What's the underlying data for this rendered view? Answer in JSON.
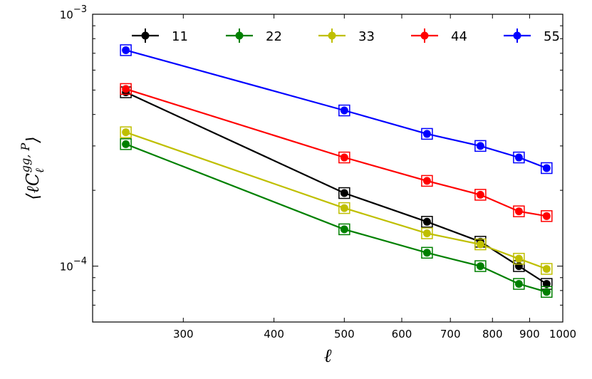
{
  "chart_data": {
    "type": "line",
    "x": [
      250,
      500,
      650,
      770,
      870,
      950
    ],
    "series": [
      {
        "name": "11",
        "color": "#000000",
        "values": [
          0.00049,
          0.000195,
          0.00015,
          0.000125,
          0.0001,
          8.5e-05
        ]
      },
      {
        "name": "22",
        "color": "#008000",
        "values": [
          0.000305,
          0.00014,
          0.000113,
          0.0001,
          8.5e-05,
          7.9e-05
        ]
      },
      {
        "name": "33",
        "color": "#bfbf00",
        "values": [
          0.00034,
          0.00017,
          0.000135,
          0.000122,
          0.000107,
          9.75e-05
        ]
      },
      {
        "name": "44",
        "color": "#ff0000",
        "values": [
          0.000505,
          0.00027,
          0.000218,
          0.000192,
          0.000165,
          0.000158
        ]
      },
      {
        "name": "55",
        "color": "#0000ff",
        "values": [
          0.00072,
          0.000415,
          0.000335,
          0.0003,
          0.00027,
          0.000245
        ]
      }
    ],
    "xscale": "log",
    "yscale": "log",
    "xlim": [
      225,
      1000
    ],
    "ylim": [
      6e-05,
      0.001
    ],
    "xticks": [
      300,
      400,
      500,
      600,
      700,
      800,
      900,
      1000
    ],
    "xtick_labels": [
      "300",
      "400",
      "500",
      "600",
      "700",
      "800",
      "900",
      "1000"
    ],
    "yticks_major": [
      0.0001,
      0.001
    ],
    "ytick_labels": [
      "10",
      "10"
    ],
    "ytick_exponents": [
      "−4",
      "−3"
    ],
    "xlabel": "ℓ",
    "ylabel_parts": {
      "open": "⟨ℓC",
      "sup": "gg, P",
      "sub": "ℓ",
      "close": "⟩"
    },
    "legend_position": "top",
    "grid": false
  }
}
